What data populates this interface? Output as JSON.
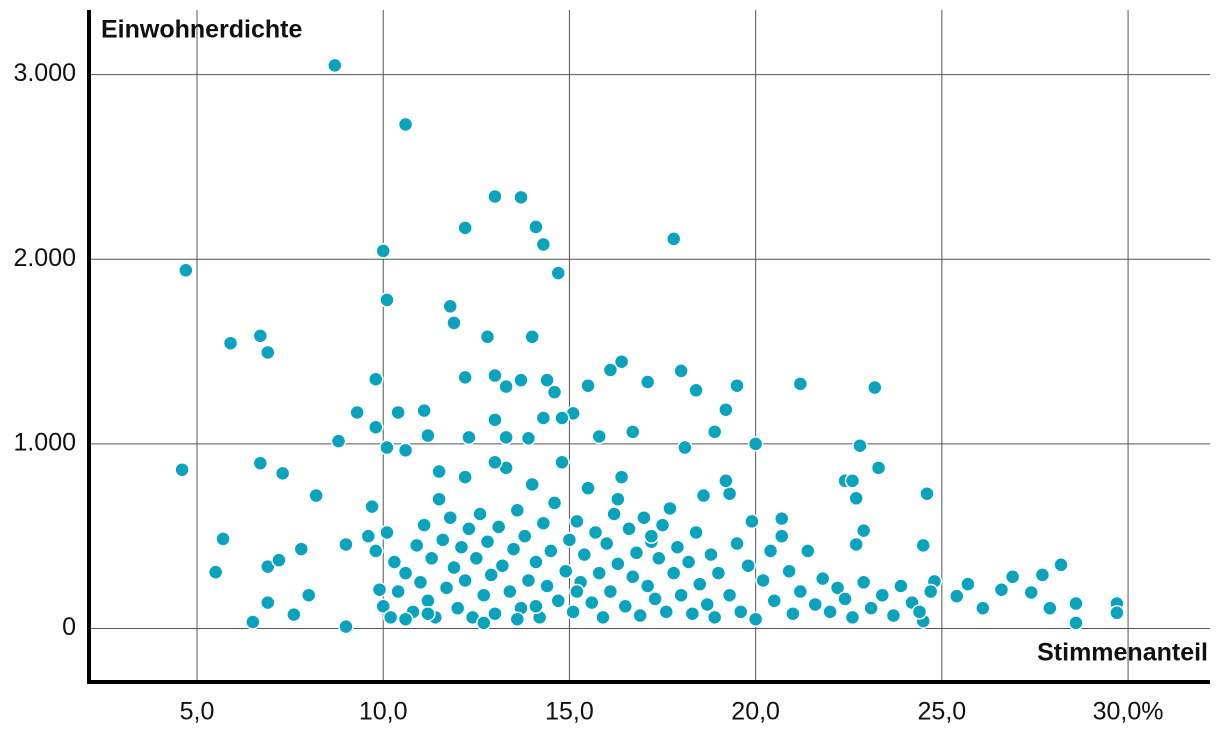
{
  "chart_data": {
    "type": "scatter",
    "y_label": "Einwohnerdichte",
    "x_label": "Stimmenanteil",
    "color": "#0aa3bd",
    "grid": true,
    "xlim": [
      2.1,
      32.2
    ],
    "ylim": [
      -290,
      3350
    ],
    "xticks": [
      {
        "value": 5,
        "label": "5,0"
      },
      {
        "value": 10,
        "label": "10,0"
      },
      {
        "value": 15,
        "label": "15,0"
      },
      {
        "value": 20,
        "label": "20,0"
      },
      {
        "value": 25,
        "label": "25,0"
      },
      {
        "value": 30,
        "label": "30,0%"
      }
    ],
    "yticks": [
      0,
      {
        "value": 1000,
        "label": "1.000"
      },
      {
        "value": 2000,
        "label": "2.000"
      },
      {
        "value": 3000,
        "label": "3.000"
      }
    ],
    "x": [
      8.7,
      10.6,
      13.0,
      13.7,
      14.1,
      12.2,
      14.3,
      10.0,
      17.8,
      14.7,
      4.7,
      10.1,
      11.8,
      11.9,
      12.8,
      14.0,
      5.9,
      6.7,
      6.9,
      16.4,
      16.1,
      18.0,
      17.1,
      18.4,
      19.5,
      21.2,
      23.2,
      9.8,
      13.0,
      12.2,
      13.7,
      14.4,
      13.3,
      14.6,
      15.5,
      15.1,
      9.3,
      10.4,
      11.1,
      19.2,
      14.3,
      14.8,
      13.0,
      9.8,
      11.2,
      8.8,
      10.1,
      10.6,
      12.3,
      13.3,
      13.9,
      15.8,
      16.7,
      18.9,
      20.0,
      22.8,
      4.6,
      6.7,
      7.3,
      23.3,
      8.2,
      19.3,
      24.6,
      5.7,
      5.5,
      6.5,
      6.9,
      6.9,
      7.2,
      7.6,
      7.8,
      8.0,
      9.0,
      9.0,
      25.7,
      25.4,
      28.2,
      27.7,
      26.9,
      28.6,
      28.6,
      29.7,
      29.7,
      27.4,
      27.9,
      26.6,
      26.1,
      22.9,
      22.7,
      22.7,
      22.4,
      22.6,
      24.5,
      20.7,
      24.8,
      24.5,
      9.6,
      9.8,
      9.9,
      10.0,
      10.2,
      10.3,
      10.4,
      9.7,
      10.1,
      10.6,
      10.8,
      10.9,
      11.0,
      11.1,
      11.2,
      11.3,
      11.4,
      11.5,
      11.6,
      11.7,
      11.8,
      11.9,
      12.0,
      12.1,
      12.2,
      12.3,
      12.4,
      12.5,
      12.6,
      12.7,
      12.8,
      12.9,
      13.0,
      13.1,
      13.2,
      13.3,
      13.4,
      13.5,
      13.6,
      13.7,
      13.8,
      13.9,
      14.0,
      14.1,
      14.2,
      14.3,
      14.4,
      14.5,
      14.6,
      14.7,
      14.8,
      14.9,
      15.0,
      15.1,
      15.2,
      15.3,
      15.4,
      15.5,
      15.6,
      15.7,
      15.8,
      15.9,
      16.0,
      16.1,
      16.2,
      16.3,
      16.4,
      16.5,
      16.6,
      16.7,
      16.8,
      16.9,
      17.0,
      17.1,
      17.2,
      17.3,
      17.4,
      17.5,
      17.6,
      17.7,
      17.8,
      17.9,
      18.0,
      18.1,
      18.2,
      18.3,
      18.4,
      18.5,
      18.6,
      18.7,
      18.8,
      18.9,
      19.0,
      19.2,
      19.3,
      19.5,
      19.6,
      19.8,
      19.9,
      20.0,
      20.2,
      20.4,
      20.5,
      20.7,
      20.9,
      21.0,
      21.2,
      21.4,
      21.6,
      21.8,
      22.0,
      22.2,
      22.4,
      22.6,
      22.9,
      23.1,
      23.4,
      23.7,
      23.9,
      24.2,
      24.4,
      24.7,
      12.2,
      11.5,
      13.0,
      16.3,
      17.2,
      14.1,
      15.2,
      13.6,
      12.7,
      11.2,
      10.6
    ],
    "values": [
      3050,
      2730,
      2340,
      2335,
      2175,
      2170,
      2080,
      2045,
      2110,
      1925,
      1940,
      1780,
      1745,
      1655,
      1580,
      1580,
      1545,
      1585,
      1495,
      1445,
      1400,
      1395,
      1335,
      1290,
      1315,
      1325,
      1305,
      1350,
      1370,
      1360,
      1345,
      1345,
      1310,
      1280,
      1315,
      1165,
      1170,
      1170,
      1180,
      1185,
      1140,
      1140,
      1130,
      1090,
      1045,
      1015,
      980,
      965,
      1035,
      1035,
      1030,
      1040,
      1065,
      1065,
      1000,
      990,
      860,
      895,
      840,
      870,
      720,
      730,
      730,
      485,
      305,
      35,
      335,
      140,
      370,
      75,
      430,
      180,
      10,
      455,
      240,
      175,
      345,
      290,
      280,
      135,
      30,
      135,
      85,
      195,
      110,
      210,
      110,
      530,
      455,
      705,
      800,
      800,
      450,
      595,
      255,
      40,
      500,
      420,
      210,
      120,
      60,
      360,
      200,
      660,
      520,
      300,
      90,
      450,
      250,
      560,
      150,
      380,
      60,
      700,
      480,
      220,
      600,
      330,
      110,
      440,
      260,
      540,
      60,
      380,
      620,
      180,
      470,
      290,
      80,
      550,
      340,
      870,
      200,
      430,
      640,
      110,
      500,
      260,
      780,
      360,
      60,
      570,
      230,
      420,
      680,
      150,
      900,
      310,
      480,
      90,
      580,
      250,
      400,
      760,
      140,
      520,
      300,
      60,
      460,
      200,
      620,
      350,
      820,
      120,
      540,
      280,
      410,
      70,
      600,
      230,
      470,
      160,
      380,
      560,
      90,
      650,
      300,
      440,
      180,
      980,
      360,
      80,
      520,
      240,
      720,
      130,
      400,
      60,
      300,
      800,
      180,
      460,
      90,
      340,
      580,
      50,
      260,
      420,
      150,
      500,
      310,
      80,
      200,
      420,
      130,
      270,
      90,
      220,
      160,
      60,
      250,
      110,
      180,
      70,
      230,
      140,
      90,
      200,
      820,
      850,
      900,
      700,
      500,
      120,
      200,
      50,
      30,
      80,
      50
    ]
  }
}
